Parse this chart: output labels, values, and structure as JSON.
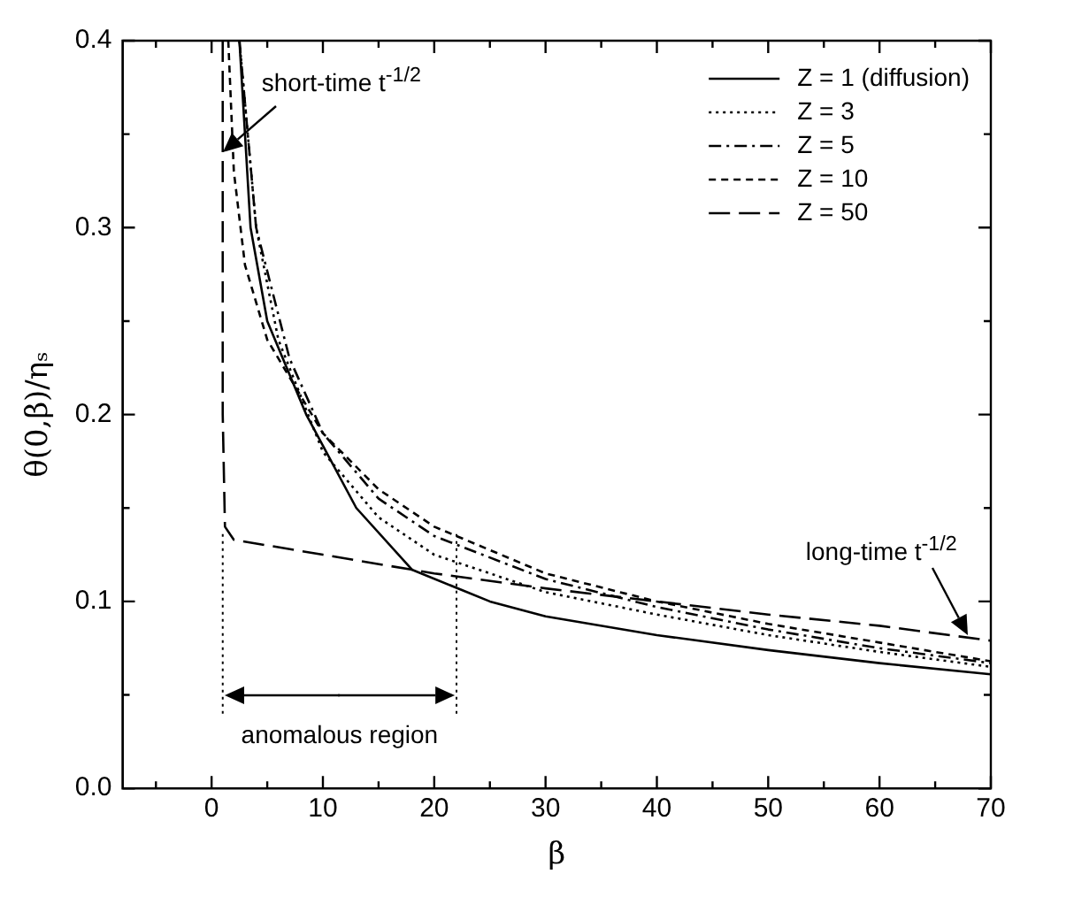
{
  "chart_data": {
    "type": "line",
    "xlabel": "β",
    "ylabel": "θ(0,β)/ηₛ",
    "xlim": [
      -8,
      70
    ],
    "ylim": [
      0,
      0.4
    ],
    "xticks": [
      {
        "value": -5,
        "label": null
      },
      0,
      {
        "value": 5,
        "label": null
      },
      10,
      {
        "value": 15,
        "label": null
      },
      20,
      {
        "value": 25,
        "label": null
      },
      30,
      {
        "value": 35,
        "label": null
      },
      40,
      {
        "value": 45,
        "label": null
      },
      50,
      {
        "value": 55,
        "label": null
      },
      60,
      {
        "value": 65,
        "label": null
      },
      70
    ],
    "yticks": [
      {
        "value": 0,
        "label": "0.0"
      },
      {
        "value": 0.05,
        "label": null
      },
      0.1,
      {
        "value": 0.15,
        "label": null
      },
      0.2,
      {
        "value": 0.25,
        "label": null
      },
      0.3,
      {
        "value": 0.35,
        "label": null
      },
      0.4
    ],
    "grid": false,
    "legend": "top right",
    "marker": "none",
    "series": [
      {
        "name": "Z = 1 (diffusion)",
        "color": "#000000",
        "line_style": "solid",
        "x": [
          2.5,
          3.5,
          5,
          8.5,
          13,
          18,
          25,
          30,
          40,
          50,
          60,
          70
        ],
        "values": [
          0.4,
          0.3,
          0.25,
          0.2,
          0.15,
          0.117,
          0.1,
          0.092,
          0.082,
          0.074,
          0.067,
          0.061
        ]
      },
      {
        "name": "Z = 3",
        "color": "#000000",
        "line_style": "dotted",
        "x": [
          2.5,
          4,
          6,
          10,
          15,
          20,
          30,
          40,
          50,
          60,
          70
        ],
        "values": [
          0.4,
          0.3,
          0.24,
          0.18,
          0.145,
          0.125,
          0.105,
          0.093,
          0.082,
          0.073,
          0.065
        ]
      },
      {
        "name": "Z = 5",
        "color": "#000000",
        "line_style": "dashdot",
        "x": [
          2.5,
          4,
          7,
          10,
          15,
          20,
          30,
          40,
          50,
          60,
          70
        ],
        "values": [
          0.4,
          0.3,
          0.23,
          0.19,
          0.155,
          0.135,
          0.112,
          0.097,
          0.085,
          0.075,
          0.067
        ]
      },
      {
        "name": "Z = 10",
        "color": "#000000",
        "line_style": "dashed",
        "x": [
          1.5,
          2,
          3,
          5,
          8,
          10,
          15,
          20,
          30,
          40,
          50,
          60,
          70
        ],
        "values": [
          0.4,
          0.33,
          0.28,
          0.24,
          0.21,
          0.19,
          0.16,
          0.14,
          0.115,
          0.1,
          0.088,
          0.078,
          0.068
        ]
      },
      {
        "name": "Z = 50",
        "color": "#000000",
        "line_style": "longdash",
        "x": [
          1,
          1,
          1.2,
          2,
          10,
          20,
          30,
          40,
          50,
          60,
          70
        ],
        "values": [
          0.4,
          0.2,
          0.14,
          0.133,
          0.125,
          0.115,
          0.107,
          0.1,
          0.093,
          0.087,
          0.079
        ]
      }
    ],
    "annotations": [
      {
        "text": "short-time t$^{-1/2}$",
        "x": 1,
        "y": 0.34
      },
      {
        "text": "long-time t$^{-1/2}$",
        "x": 68,
        "y": 0.082
      },
      "anomalous region"
    ],
    "ref_lines": [
      {
        "axis": "x",
        "value": 1,
        "color": "#000000",
        "line_style": "dotted"
      },
      {
        "axis": "x",
        "value": 22,
        "color": "#000000",
        "line_style": "dotted"
      }
    ]
  }
}
